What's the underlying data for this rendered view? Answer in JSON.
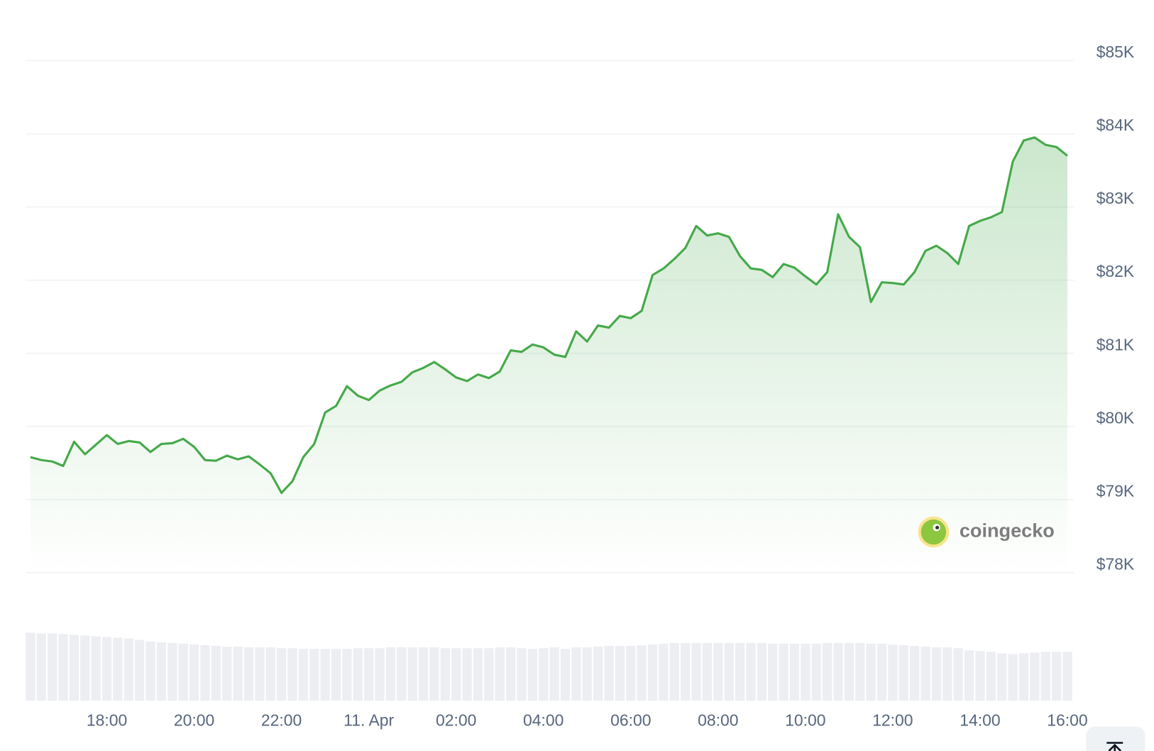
{
  "chart_data": {
    "type": "line",
    "watermark": "coingecko",
    "x": [
      16.25,
      16.5,
      16.75,
      17,
      17.25,
      17.5,
      17.75,
      18,
      18.25,
      18.5,
      18.75,
      19,
      19.25,
      19.5,
      19.75,
      20,
      20.25,
      20.5,
      20.75,
      21,
      21.25,
      21.5,
      21.75,
      22,
      22.25,
      22.5,
      22.75,
      23,
      23.25,
      23.5,
      23.75,
      24,
      24.25,
      24.5,
      24.75,
      25,
      25.25,
      25.5,
      25.75,
      26,
      26.25,
      26.5,
      26.75,
      27,
      27.25,
      27.5,
      27.75,
      28,
      28.25,
      28.5,
      28.75,
      29,
      29.25,
      29.5,
      29.75,
      30,
      30.25,
      30.5,
      30.75,
      31,
      31.25,
      31.5,
      31.75,
      32,
      32.25,
      32.5,
      32.75,
      33,
      33.25,
      33.5,
      33.75,
      34,
      34.25,
      34.5,
      34.75,
      35,
      35.25,
      35.5,
      35.75,
      36,
      36.25,
      36.5,
      36.75,
      37,
      37.25,
      37.5,
      37.75,
      38,
      38.25,
      38.5,
      38.75,
      39,
      39.25,
      39.5,
      39.75,
      40
    ],
    "values": [
      79580,
      79540,
      79520,
      79460,
      79790,
      79620,
      79750,
      79880,
      79760,
      79800,
      79780,
      79650,
      79760,
      79770,
      79830,
      79720,
      79540,
      79530,
      79600,
      79550,
      79590,
      79480,
      79360,
      79090,
      79250,
      79580,
      79760,
      80190,
      80280,
      80550,
      80420,
      80360,
      80490,
      80560,
      80610,
      80740,
      80800,
      80880,
      80780,
      80670,
      80620,
      80710,
      80660,
      80750,
      81040,
      81020,
      81120,
      81080,
      80980,
      80950,
      81300,
      81160,
      81380,
      81350,
      81510,
      81480,
      81580,
      82070,
      82160,
      82290,
      82440,
      82740,
      82610,
      82640,
      82590,
      82330,
      82160,
      82140,
      82040,
      82220,
      82170,
      82050,
      81940,
      82110,
      82900,
      82590,
      82450,
      81700,
      81970,
      81960,
      81940,
      82110,
      82400,
      82470,
      82370,
      82220,
      82740,
      82810,
      82860,
      82930,
      83620,
      83910,
      83950,
      83850,
      83820,
      83700
    ],
    "volume": [
      92,
      91,
      91,
      90,
      89,
      88,
      87,
      86,
      85,
      84,
      82,
      80,
      79,
      78,
      77,
      76,
      75,
      74,
      73,
      73,
      72,
      72,
      72,
      71,
      71,
      70,
      70,
      70,
      70,
      70,
      71,
      71,
      71,
      72,
      72,
      72,
      72,
      72,
      71,
      71,
      71,
      71,
      71,
      72,
      72,
      71,
      70,
      71,
      72,
      70,
      72,
      72,
      73,
      74,
      74,
      74,
      75,
      76,
      77,
      78,
      78,
      78,
      78,
      78,
      78,
      78,
      78,
      78,
      77,
      77,
      77,
      77,
      77,
      78,
      78,
      78,
      78,
      77,
      77,
      76,
      75,
      74,
      73,
      72,
      72,
      71,
      68,
      67,
      66,
      64,
      63,
      64,
      65,
      66,
      66,
      66
    ],
    "color": "#45a94a",
    "volume_color": "#eceef2",
    "xlim": [
      16.18,
      40.12
    ],
    "ylim": [
      78000,
      85000
    ],
    "grid": true,
    "yticks": [
      {
        "value": 85000,
        "label": "$85K"
      },
      {
        "value": 84000,
        "label": "$84K"
      },
      {
        "value": 83000,
        "label": "$83K"
      },
      {
        "value": 82000,
        "label": "$82K"
      },
      {
        "value": 81000,
        "label": "$81K"
      },
      {
        "value": 80000,
        "label": "$80K"
      },
      {
        "value": 79000,
        "label": "$79K"
      },
      {
        "value": 78000,
        "label": "$78K"
      }
    ],
    "xticks": [
      {
        "value": 18,
        "label": "18:00"
      },
      {
        "value": 20,
        "label": "20:00"
      },
      {
        "value": 22,
        "label": "22:00"
      },
      {
        "value": 24,
        "label": "11. Apr"
      },
      {
        "value": 26,
        "label": "02:00"
      },
      {
        "value": 28,
        "label": "04:00"
      },
      {
        "value": 30,
        "label": "06:00"
      },
      {
        "value": 32,
        "label": "08:00"
      },
      {
        "value": 34,
        "label": "10:00"
      },
      {
        "value": 36,
        "label": "12:00"
      },
      {
        "value": 38,
        "label": "14:00"
      },
      {
        "value": 40,
        "label": "16:00"
      }
    ]
  }
}
